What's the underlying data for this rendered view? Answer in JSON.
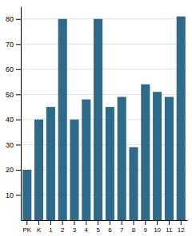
{
  "chart_data": {
    "type": "bar",
    "categories": [
      "PK",
      "K",
      "1",
      "2",
      "3",
      "4",
      "5",
      "6",
      "7",
      "8",
      "9",
      "10",
      "11",
      "12"
    ],
    "values": [
      20,
      40,
      45,
      80,
      40,
      48,
      80,
      45,
      49,
      29,
      54,
      51,
      49,
      81
    ],
    "color": "#2e6b8a",
    "ylim": [
      0,
      85
    ],
    "yticks": [
      10,
      20,
      30,
      40,
      50,
      60,
      70,
      80
    ],
    "grid": true
  }
}
